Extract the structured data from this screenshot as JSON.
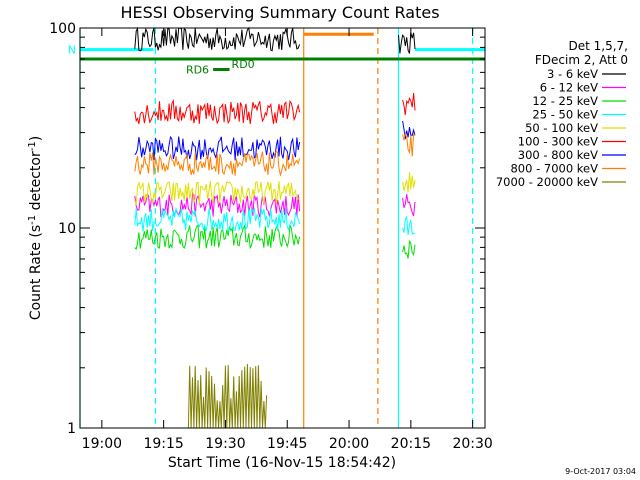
{
  "chart_data": {
    "type": "line",
    "title": "HESSI Observing Summary Count Rates",
    "xlabel": "Start Time (16-Nov-15 18:54:42)",
    "ylabel": "Count Rate (s⁻¹ detector⁻¹)",
    "ylabel_parts": {
      "base": "Count Rate (s",
      "sup1": "-1",
      "mid": " detector",
      "sup2": "-1",
      "end": ")"
    },
    "y_scale": "log",
    "ylim": [
      1,
      100
    ],
    "xlim": [
      "18:54:42",
      "20:33:00"
    ],
    "x_ticks": [
      "19:00",
      "19:15",
      "19:30",
      "19:45",
      "20:00",
      "20:15",
      "20:30"
    ],
    "y_ticks": [
      "1",
      "10",
      "100"
    ],
    "legend_header": [
      "Det 1,5,7,",
      "FDecim 2, Att 0"
    ],
    "legend_position": "right",
    "footer_text": "9-Oct-2017 03:04",
    "series": [
      {
        "name": "3 - 6 keV",
        "color": "#000000",
        "segments": [
          {
            "x": [
              "19:08:00",
              "19:48:00"
            ],
            "y": 88
          },
          {
            "x": [
              "20:12:00",
              "20:16:00"
            ],
            "y": 85
          }
        ]
      },
      {
        "name": "6 - 12 keV",
        "color": "#ff00ff",
        "segments": [
          {
            "x": [
              "19:08:00",
              "19:48:00"
            ],
            "y": 13
          },
          {
            "x": [
              "20:13:00",
              "20:16:00"
            ],
            "y": 13
          }
        ]
      },
      {
        "name": "12 - 25 keV",
        "color": "#00e000",
        "segments": [
          {
            "x": [
              "19:08:00",
              "19:48:00"
            ],
            "y": 9
          },
          {
            "x": [
              "20:13:00",
              "20:16:00"
            ],
            "y": 8
          }
        ]
      },
      {
        "name": "25 - 50 keV",
        "color": "#00ffff",
        "segments": [
          {
            "x": [
              "19:08:00",
              "19:48:00"
            ],
            "y": 11
          },
          {
            "x": [
              "20:13:00",
              "20:16:00"
            ],
            "y": 10
          }
        ]
      },
      {
        "name": "50 - 100 keV",
        "color": "#e0e000",
        "segments": [
          {
            "x": [
              "19:08:00",
              "19:48:00"
            ],
            "y": 15
          },
          {
            "x": [
              "20:13:00",
              "20:16:00"
            ],
            "y": 17
          }
        ]
      },
      {
        "name": "100 - 300 keV",
        "color": "#ff0000",
        "segments": [
          {
            "x": [
              "19:08:00",
              "19:48:00"
            ],
            "y": 38
          },
          {
            "x": [
              "20:13:00",
              "20:16:00"
            ],
            "y": 42
          }
        ]
      },
      {
        "name": "300 - 800 keV",
        "color": "#0000ff",
        "segments": [
          {
            "x": [
              "19:08:00",
              "19:48:00"
            ],
            "y": 25
          },
          {
            "x": [
              "20:13:00",
              "20:16:00"
            ],
            "y": 30
          }
        ]
      },
      {
        "name": "800 - 7000 keV",
        "color": "#ff8000",
        "segments": [
          {
            "x": [
              "19:08:00",
              "19:48:00"
            ],
            "y": 21
          },
          {
            "x": [
              "20:13:00",
              "20:16:00"
            ],
            "y": 26
          }
        ]
      },
      {
        "name": "7000 - 20000 keV",
        "color": "#808000",
        "segments": [
          {
            "x": [
              "19:21:00",
              "19:40:00"
            ],
            "y": 1.5
          }
        ]
      }
    ],
    "flags": [
      {
        "label": "N",
        "color": "#00ffff",
        "y": 78,
        "x": [
          "18:54:42",
          "19:12:30"
        ]
      },
      {
        "label": "",
        "color": "#00ffff",
        "y": 78,
        "x": [
          "20:16:00",
          "20:33:00"
        ]
      },
      {
        "label": "",
        "color": "#008000",
        "y": 70,
        "x": [
          "18:54:42",
          "20:33:00"
        ]
      },
      {
        "label": "RD6",
        "color": "#008000",
        "y": 62,
        "x": [
          "19:27:00",
          "19:31:00"
        ]
      },
      {
        "label": "RD0",
        "color": "#008000",
        "y": 66,
        "x": [
          "19:31:00",
          "19:31:00"
        ]
      },
      {
        "label": "",
        "color": "#ff8000",
        "y": 93,
        "x": [
          "19:49:00",
          "20:06:00"
        ]
      }
    ],
    "vertical_lines": [
      {
        "x": "18:54:42",
        "color": "#00ffff",
        "style": "solid"
      },
      {
        "x": "19:13:00",
        "color": "#00ffff",
        "style": "dashed"
      },
      {
        "x": "19:49:00",
        "color": "#ff8000",
        "style": "solid"
      },
      {
        "x": "20:07:00",
        "color": "#ff8000",
        "style": "dashed"
      },
      {
        "x": "20:12:00",
        "color": "#00ffff",
        "style": "solid"
      },
      {
        "x": "20:30:00",
        "color": "#00ffff",
        "style": "dashed"
      }
    ]
  }
}
